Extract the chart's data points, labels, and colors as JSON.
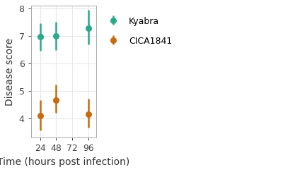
{
  "x_values": [
    24,
    48,
    96
  ],
  "x_ticks": [
    24,
    48,
    72,
    96
  ],
  "x_lim": [
    10,
    108
  ],
  "kyabra_means": [
    6.97,
    7.0,
    7.27
  ],
  "kyabra_lower_err": [
    0.5,
    0.52,
    0.59
  ],
  "kyabra_upper_err": [
    0.5,
    0.52,
    0.68
  ],
  "cica_means": [
    4.1,
    4.67,
    4.15
  ],
  "cica_lower_err": [
    0.52,
    0.47,
    0.47
  ],
  "cica_upper_err": [
    0.57,
    0.55,
    0.57
  ],
  "kyabra_color": "#2aaa8a",
  "cica_color": "#c96a10",
  "xlabel": "Time (hours post infection)",
  "ylabel": "Disease score",
  "ylim": [
    3.3,
    8.1
  ],
  "yticks": [
    4,
    5,
    6,
    7,
    8
  ],
  "bg_color": "#ffffff",
  "panel_bg_color": "#ffffff",
  "grid_color": "#e8e8e8",
  "legend_labels": [
    "Kyabra",
    "CICA1841"
  ],
  "marker_size": 5.5,
  "capsize": 0,
  "tick_label_size": 9,
  "axis_label_size": 10
}
